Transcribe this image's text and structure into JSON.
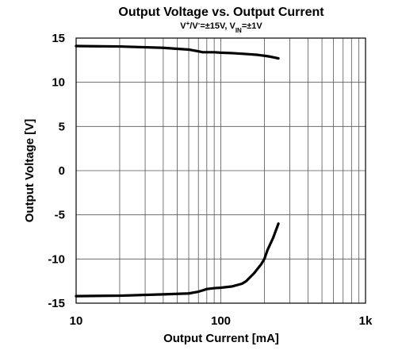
{
  "chart_data": {
    "type": "line",
    "title": "Output Voltage vs. Output Current",
    "subtitle": {
      "parts": [
        {
          "text": "V",
          "kind": "normal"
        },
        {
          "text": "+",
          "kind": "sup"
        },
        {
          "text": "/V",
          "kind": "normal"
        },
        {
          "text": "-",
          "kind": "sup"
        },
        {
          "text": "=±15V, V",
          "kind": "normal"
        },
        {
          "text": "IN",
          "kind": "sub"
        },
        {
          "text": "=±1V",
          "kind": "normal"
        }
      ]
    },
    "xlabel": "Output Current [mA]",
    "ylabel": "Output Voltage [V]",
    "xscale": "log",
    "xlim": [
      10,
      1000
    ],
    "ylim": [
      -15,
      15
    ],
    "xticks": [
      {
        "value": 10,
        "label": "10"
      },
      {
        "value": 100,
        "label": "100"
      },
      {
        "value": 1000,
        "label": "1k"
      }
    ],
    "yticks": [
      {
        "value": 15,
        "label": "15"
      },
      {
        "value": 10,
        "label": "10"
      },
      {
        "value": 5,
        "label": "5"
      },
      {
        "value": 0,
        "label": "0"
      },
      {
        "value": -5,
        "label": "-5"
      },
      {
        "value": -10,
        "label": "-10"
      },
      {
        "value": -15,
        "label": "-15"
      }
    ],
    "grid": true,
    "legend": "none",
    "series": [
      {
        "color": "#000000",
        "x": [
          10,
          20,
          40,
          60,
          70,
          75,
          80,
          90,
          100,
          120,
          150,
          180,
          200,
          220,
          250
        ],
        "y": [
          14.1,
          14.05,
          13.9,
          13.7,
          13.5,
          13.4,
          13.4,
          13.4,
          13.35,
          13.3,
          13.2,
          13.1,
          13.0,
          12.9,
          12.7
        ]
      },
      {
        "color": "#000000",
        "x": [
          10,
          20,
          40,
          60,
          70,
          75,
          80,
          90,
          100,
          120,
          140,
          150,
          170,
          190,
          200,
          210,
          230,
          250
        ],
        "y": [
          -14.2,
          -14.15,
          -14.0,
          -13.9,
          -13.7,
          -13.55,
          -13.4,
          -13.3,
          -13.25,
          -13.1,
          -12.8,
          -12.5,
          -11.6,
          -10.6,
          -10.0,
          -9.0,
          -7.6,
          -6.0
        ]
      }
    ]
  }
}
